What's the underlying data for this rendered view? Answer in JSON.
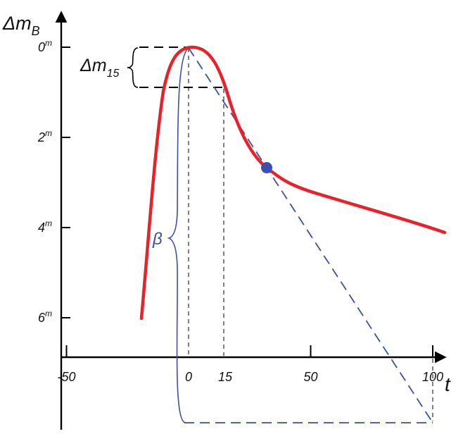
{
  "axes": {
    "y_symbol": "Δm",
    "y_subscript": "B",
    "x_symbol": "t",
    "y_ticks": [
      {
        "value": 0,
        "label": "0",
        "sup": "m"
      },
      {
        "value": 2,
        "label": "2",
        "sup": "m"
      },
      {
        "value": 4,
        "label": "4",
        "sup": "m"
      },
      {
        "value": 6,
        "label": "6",
        "sup": "m"
      }
    ],
    "x_ticks": [
      {
        "value": -50,
        "label": "-50"
      },
      {
        "value": 0,
        "label": "0"
      },
      {
        "value": 15,
        "label": "15"
      },
      {
        "value": 50,
        "label": "50"
      },
      {
        "value": 100,
        "label": "100"
      }
    ]
  },
  "annotations": {
    "delta_m15_symbol": "Δm",
    "delta_m15_subscript": "15",
    "beta_label": "β"
  },
  "colors": {
    "light_curve": "#e8222a",
    "beta_brace": "#3b4fa8",
    "dashed_tangent": "#3b4fa8",
    "marker": "#3a4fb0",
    "axes": "#000000"
  }
}
